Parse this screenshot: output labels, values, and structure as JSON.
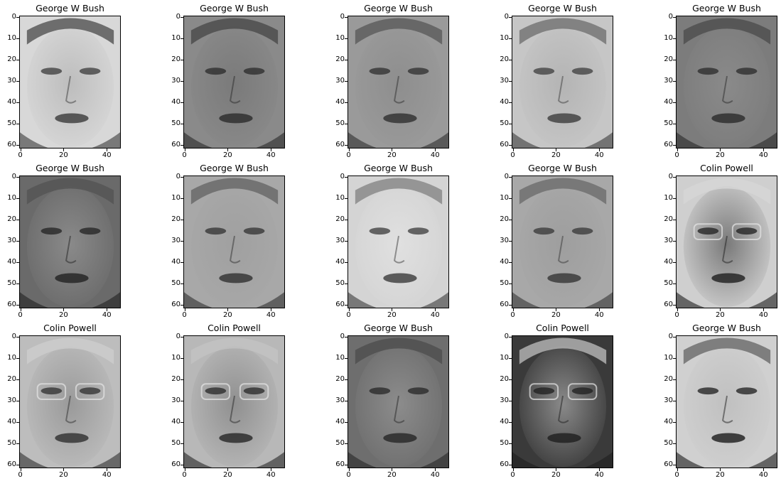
{
  "figure": {
    "panels": [
      {
        "title": "George W Bush",
        "tone": {
          "bg": "#d8d8d8",
          "face": "#bdbdbd",
          "hair": "#5a5a5a",
          "dark": "#3a3a3a"
        }
      },
      {
        "title": "George W Bush",
        "tone": {
          "bg": "#8a8a8a",
          "face": "#7a7a7a",
          "hair": "#4c4c4c",
          "dark": "#2a2a2a"
        }
      },
      {
        "title": "George W Bush",
        "tone": {
          "bg": "#9a9a9a",
          "face": "#8e8e8e",
          "hair": "#5e5e5e",
          "dark": "#2e2e2e"
        }
      },
      {
        "title": "George W Bush",
        "tone": {
          "bg": "#c6c6c6",
          "face": "#b4b4b4",
          "hair": "#767676",
          "dark": "#3c3c3c"
        }
      },
      {
        "title": "George W Bush",
        "tone": {
          "bg": "#7c7c7c",
          "face": "#8a8a8a",
          "hair": "#505050",
          "dark": "#2a2a2a"
        }
      },
      {
        "title": "George W Bush",
        "tone": {
          "bg": "#6a6a6a",
          "face": "#8a8a8a",
          "hair": "#555555",
          "dark": "#222222"
        }
      },
      {
        "title": "George W Bush",
        "tone": {
          "bg": "#a8a8a8",
          "face": "#a0a0a0",
          "hair": "#6a6a6a",
          "dark": "#303030"
        }
      },
      {
        "title": "George W Bush",
        "tone": {
          "bg": "#d4d4d4",
          "face": "#e0e0e0",
          "hair": "#8a8a8a",
          "dark": "#3a3a3a"
        }
      },
      {
        "title": "George W Bush",
        "tone": {
          "bg": "#a8a8a8",
          "face": "#9e9e9e",
          "hair": "#707070",
          "dark": "#353535"
        }
      },
      {
        "title": "Colin Powell",
        "tone": {
          "bg": "#cfcfcf",
          "face": "#7a7a7a",
          "hair": "#d6d6d6",
          "dark": "#1e1e1e"
        }
      },
      {
        "title": "Colin Powell",
        "tone": {
          "bg": "#bdbdbd",
          "face": "#9a9a9a",
          "hair": "#cccccc",
          "dark": "#2e2e2e"
        }
      },
      {
        "title": "Colin Powell",
        "tone": {
          "bg": "#b8b8b8",
          "face": "#909090",
          "hair": "#c2c2c2",
          "dark": "#262626"
        }
      },
      {
        "title": "George W Bush",
        "tone": {
          "bg": "#6e6e6e",
          "face": "#8c8c8c",
          "hair": "#505050",
          "dark": "#262626"
        }
      },
      {
        "title": "Colin Powell",
        "tone": {
          "bg": "#3a3a3a",
          "face": "#8a8a8a",
          "hair": "#b0b0b0",
          "dark": "#1e1e1e"
        }
      },
      {
        "title": "George W Bush",
        "tone": {
          "bg": "#d0d0d0",
          "face": "#c0c0c0",
          "hair": "#707070",
          "dark": "#1c1c1c"
        }
      }
    ],
    "y_ticks": [
      "0",
      "10",
      "20",
      "30",
      "40",
      "50",
      "60"
    ],
    "x_ticks": [
      "0",
      "20",
      "40"
    ]
  }
}
